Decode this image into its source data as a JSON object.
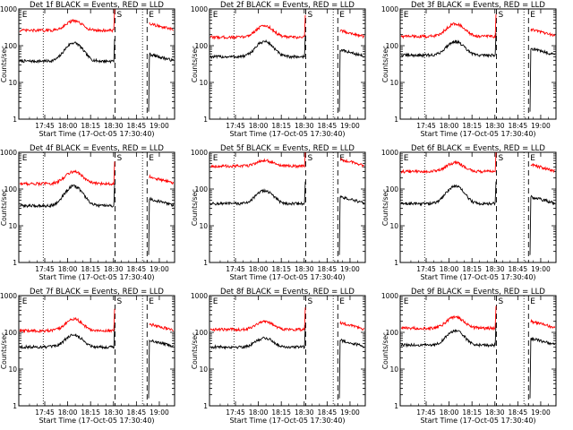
{
  "chart_data": [
    {
      "type": "line",
      "title": "Det 1f BLACK = Events, RED = LLD",
      "xlabel": "Start Time (17-Oct-05 17:30:40)",
      "ylabel": "Counts/sec",
      "x_ticks": [
        "17:45",
        "18:00",
        "18:15",
        "18:30",
        "18:45",
        "19:00"
      ],
      "x_tick_minutes": [
        15,
        30,
        45,
        60,
        75,
        90
      ],
      "xlim_minutes": [
        -2,
        100
      ],
      "y_scale": "log",
      "ylim": [
        1,
        1000
      ],
      "y_ticks": [
        "1",
        "10",
        "100",
        "1000"
      ],
      "markers": [
        {
          "label": "E",
          "x_minutes": -1
        },
        {
          "label": "S",
          "x_minutes": 61
        },
        {
          "label": "E",
          "x_minutes": 82
        }
      ],
      "dotted_lines_minutes": [
        14,
        79
      ],
      "dashed_lines_minutes": [
        61,
        82
      ],
      "series": [
        {
          "name": "Events",
          "color": "#000000",
          "baseline": 38,
          "peak": 120,
          "peak_at": 34
        },
        {
          "name": "LLD",
          "color": "#ff0000",
          "baseline": 260,
          "peak": 470,
          "peak_at": 34
        }
      ]
    },
    {
      "type": "line",
      "title": "Det 2f BLACK = Events, RED = LLD",
      "xlabel": "Start Time (17-Oct-05 17:30:40)",
      "ylabel": "Counts/sec",
      "x_ticks": [
        "17:45",
        "18:00",
        "18:15",
        "18:30",
        "18:45",
        "19:00"
      ],
      "x_tick_minutes": [
        15,
        30,
        45,
        60,
        75,
        90
      ],
      "xlim_minutes": [
        -2,
        100
      ],
      "y_scale": "log",
      "ylim": [
        1,
        1000
      ],
      "y_ticks": [
        "1",
        "10",
        "100",
        "1000"
      ],
      "markers": [
        {
          "label": "E",
          "x_minutes": -1
        },
        {
          "label": "S",
          "x_minutes": 61
        },
        {
          "label": "E",
          "x_minutes": 82
        }
      ],
      "dotted_lines_minutes": [
        14,
        79
      ],
      "dashed_lines_minutes": [
        61,
        82
      ],
      "series": [
        {
          "name": "Events",
          "color": "#000000",
          "baseline": 50,
          "peak": 130,
          "peak_at": 34
        },
        {
          "name": "LLD",
          "color": "#ff0000",
          "baseline": 170,
          "peak": 350,
          "peak_at": 34
        }
      ]
    },
    {
      "type": "line",
      "title": "Det 3f BLACK = Events, RED = LLD",
      "xlabel": "Start Time (17-Oct-05 17:30:40)",
      "ylabel": "Counts/sec",
      "x_ticks": [
        "17:45",
        "18:00",
        "18:15",
        "18:30",
        "18:45",
        "19:00"
      ],
      "x_tick_minutes": [
        15,
        30,
        45,
        60,
        75,
        90
      ],
      "xlim_minutes": [
        -2,
        100
      ],
      "y_scale": "log",
      "ylim": [
        1,
        1000
      ],
      "y_ticks": [
        "1",
        "10",
        "100",
        "1000"
      ],
      "markers": [
        {
          "label": "E",
          "x_minutes": -1
        },
        {
          "label": "S",
          "x_minutes": 61
        },
        {
          "label": "E",
          "x_minutes": 82
        }
      ],
      "dotted_lines_minutes": [
        14,
        79
      ],
      "dashed_lines_minutes": [
        61,
        82
      ],
      "series": [
        {
          "name": "Events",
          "color": "#000000",
          "baseline": 55,
          "peak": 130,
          "peak_at": 34
        },
        {
          "name": "LLD",
          "color": "#ff0000",
          "baseline": 180,
          "peak": 400,
          "peak_at": 34
        }
      ]
    },
    {
      "type": "line",
      "title": "Det 4f BLACK = Events, RED = LLD",
      "xlabel": "Start Time (17-Oct-05 17:30:40)",
      "ylabel": "Counts/sec",
      "x_ticks": [
        "17:45",
        "18:00",
        "18:15",
        "18:30",
        "18:45",
        "19:00"
      ],
      "x_tick_minutes": [
        15,
        30,
        45,
        60,
        75,
        90
      ],
      "xlim_minutes": [
        -2,
        100
      ],
      "y_scale": "log",
      "ylim": [
        1,
        1000
      ],
      "y_ticks": [
        "1",
        "10",
        "100",
        "1000"
      ],
      "markers": [
        {
          "label": "E",
          "x_minutes": -1
        },
        {
          "label": "S",
          "x_minutes": 61
        },
        {
          "label": "E",
          "x_minutes": 82
        }
      ],
      "dotted_lines_minutes": [
        14,
        79
      ],
      "dashed_lines_minutes": [
        61,
        82
      ],
      "series": [
        {
          "name": "Events",
          "color": "#000000",
          "baseline": 35,
          "peak": 120,
          "peak_at": 34
        },
        {
          "name": "LLD",
          "color": "#ff0000",
          "baseline": 140,
          "peak": 300,
          "peak_at": 34
        }
      ]
    },
    {
      "type": "line",
      "title": "Det 5f BLACK = Events, RED = LLD",
      "xlabel": "Start Time (17-Oct-05 17:30:40)",
      "ylabel": "Counts/sec",
      "x_ticks": [
        "17:45",
        "18:00",
        "18:15",
        "18:30",
        "18:45",
        "19:00"
      ],
      "x_tick_minutes": [
        15,
        30,
        45,
        60,
        75,
        90
      ],
      "xlim_minutes": [
        -2,
        100
      ],
      "y_scale": "log",
      "ylim": [
        1,
        1000
      ],
      "y_ticks": [
        "1",
        "10",
        "100",
        "1000"
      ],
      "markers": [
        {
          "label": "E",
          "x_minutes": -1
        },
        {
          "label": "S",
          "x_minutes": 61
        },
        {
          "label": "E",
          "x_minutes": 82
        }
      ],
      "dotted_lines_minutes": [
        14,
        79
      ],
      "dashed_lines_minutes": [
        61,
        82
      ],
      "series": [
        {
          "name": "Events",
          "color": "#000000",
          "baseline": 40,
          "peak": 90,
          "peak_at": 34
        },
        {
          "name": "LLD",
          "color": "#ff0000",
          "baseline": 420,
          "peak": 600,
          "peak_at": 34
        }
      ]
    },
    {
      "type": "line",
      "title": "Det 6f BLACK = Events, RED = LLD",
      "xlabel": "Start Time (17-Oct-05 17:30:40)",
      "ylabel": "Counts/sec",
      "x_ticks": [
        "17:45",
        "18:00",
        "18:15",
        "18:30",
        "18:45",
        "19:00"
      ],
      "x_tick_minutes": [
        15,
        30,
        45,
        60,
        75,
        90
      ],
      "xlim_minutes": [
        -2,
        100
      ],
      "y_scale": "log",
      "ylim": [
        1,
        1000
      ],
      "y_ticks": [
        "1",
        "10",
        "100",
        "1000"
      ],
      "markers": [
        {
          "label": "E",
          "x_minutes": -1
        },
        {
          "label": "S",
          "x_minutes": 61
        },
        {
          "label": "E",
          "x_minutes": 82
        }
      ],
      "dotted_lines_minutes": [
        14,
        79
      ],
      "dashed_lines_minutes": [
        61,
        82
      ],
      "series": [
        {
          "name": "Events",
          "color": "#000000",
          "baseline": 40,
          "peak": 120,
          "peak_at": 34
        },
        {
          "name": "LLD",
          "color": "#ff0000",
          "baseline": 300,
          "peak": 520,
          "peak_at": 34
        }
      ]
    },
    {
      "type": "line",
      "title": "Det 7f BLACK = Events, RED = LLD",
      "xlabel": "Start Time (17-Oct-05 17:30:40)",
      "ylabel": "Counts/sec",
      "x_ticks": [
        "17:45",
        "18:00",
        "18:15",
        "18:30",
        "18:45",
        "19:00"
      ],
      "x_tick_minutes": [
        15,
        30,
        45,
        60,
        75,
        90
      ],
      "xlim_minutes": [
        -2,
        100
      ],
      "y_scale": "log",
      "ylim": [
        1,
        1000
      ],
      "y_ticks": [
        "1",
        "10",
        "100",
        "1000"
      ],
      "markers": [
        {
          "label": "E",
          "x_minutes": -1
        },
        {
          "label": "S",
          "x_minutes": 61
        },
        {
          "label": "E",
          "x_minutes": 82
        }
      ],
      "dotted_lines_minutes": [
        14,
        79
      ],
      "dashed_lines_minutes": [
        61,
        82
      ],
      "series": [
        {
          "name": "Events",
          "color": "#000000",
          "baseline": 40,
          "peak": 85,
          "peak_at": 34
        },
        {
          "name": "LLD",
          "color": "#ff0000",
          "baseline": 110,
          "peak": 230,
          "peak_at": 34
        }
      ]
    },
    {
      "type": "line",
      "title": "Det 8f BLACK = Events, RED = LLD",
      "xlabel": "Start Time (17-Oct-05 17:30:40)",
      "ylabel": "Counts/sec",
      "x_ticks": [
        "17:45",
        "18:00",
        "18:15",
        "18:30",
        "18:45",
        "19:00"
      ],
      "x_tick_minutes": [
        15,
        30,
        45,
        60,
        75,
        90
      ],
      "xlim_minutes": [
        -2,
        100
      ],
      "y_scale": "log",
      "ylim": [
        1,
        1000
      ],
      "y_ticks": [
        "1",
        "10",
        "100",
        "1000"
      ],
      "markers": [
        {
          "label": "E",
          "x_minutes": -1
        },
        {
          "label": "S",
          "x_minutes": 61
        },
        {
          "label": "E",
          "x_minutes": 82
        }
      ],
      "dotted_lines_minutes": [
        14,
        79
      ],
      "dashed_lines_minutes": [
        61,
        82
      ],
      "series": [
        {
          "name": "Events",
          "color": "#000000",
          "baseline": 40,
          "peak": 70,
          "peak_at": 34
        },
        {
          "name": "LLD",
          "color": "#ff0000",
          "baseline": 120,
          "peak": 200,
          "peak_at": 34
        }
      ]
    },
    {
      "type": "line",
      "title": "Det 9f BLACK = Events, RED = LLD",
      "xlabel": "Start Time (17-Oct-05 17:30:40)",
      "ylabel": "Counts/sec",
      "x_ticks": [
        "17:45",
        "18:00",
        "18:15",
        "18:30",
        "18:45",
        "19:00"
      ],
      "x_tick_minutes": [
        15,
        30,
        45,
        60,
        75,
        90
      ],
      "xlim_minutes": [
        -2,
        100
      ],
      "y_scale": "log",
      "ylim": [
        1,
        1000
      ],
      "y_ticks": [
        "1",
        "10",
        "100",
        "1000"
      ],
      "markers": [
        {
          "label": "E",
          "x_minutes": -1
        },
        {
          "label": "S",
          "x_minutes": 61
        },
        {
          "label": "E",
          "x_minutes": 82
        }
      ],
      "dotted_lines_minutes": [
        14,
        79
      ],
      "dashed_lines_minutes": [
        61,
        82
      ],
      "series": [
        {
          "name": "Events",
          "color": "#000000",
          "baseline": 45,
          "peak": 110,
          "peak_at": 34
        },
        {
          "name": "LLD",
          "color": "#ff0000",
          "baseline": 130,
          "peak": 260,
          "peak_at": 34
        }
      ]
    }
  ]
}
